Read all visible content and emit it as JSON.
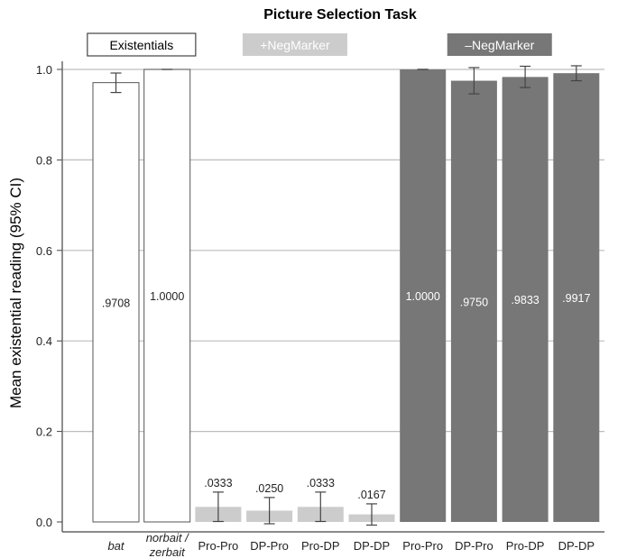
{
  "chart_data": {
    "type": "bar",
    "title": "Picture Selection Task",
    "ylabel": "Mean existential reading (95% CI)",
    "xlabel": "",
    "ylim": [
      0,
      1.0
    ],
    "yticks": [
      "0.0",
      "0.2",
      "0.4",
      "0.6",
      "0.8",
      "1.0"
    ],
    "grid": true,
    "groups": [
      {
        "name": "Existentials",
        "style": "outline",
        "fill": "#ffffff",
        "stroke": "#555555"
      },
      {
        "name": "+NegMarker",
        "style": "light",
        "fill": "#cccccc"
      },
      {
        "name": "–NegMarker",
        "style": "dark",
        "fill": "#777777"
      }
    ],
    "bars": [
      {
        "label": "bat",
        "label_lines": [
          "bat"
        ],
        "italic": true,
        "group": 0,
        "value": 0.9708,
        "data_label": ".9708",
        "ci": [
          0.949,
          0.992
        ]
      },
      {
        "label": "norbait / zerbait",
        "label_lines": [
          "norbait /",
          "zerbait"
        ],
        "italic": true,
        "group": 0,
        "value": 1.0,
        "data_label": "1.0000",
        "ci": [
          1.0,
          1.0
        ]
      },
      {
        "label": "Pro-Pro",
        "label_lines": [
          "Pro-Pro"
        ],
        "italic": false,
        "group": 1,
        "value": 0.0333,
        "data_label": ".0333",
        "ci": [
          0.001,
          0.066
        ]
      },
      {
        "label": "DP-Pro",
        "label_lines": [
          "DP-Pro"
        ],
        "italic": false,
        "group": 1,
        "value": 0.025,
        "data_label": ".0250",
        "ci": [
          -0.004,
          0.054
        ]
      },
      {
        "label": "Pro-DP",
        "label_lines": [
          "Pro-DP"
        ],
        "italic": false,
        "group": 1,
        "value": 0.0333,
        "data_label": ".0333",
        "ci": [
          0.001,
          0.066
        ]
      },
      {
        "label": "DP-DP",
        "label_lines": [
          "DP-DP"
        ],
        "italic": false,
        "group": 1,
        "value": 0.0167,
        "data_label": ".0167",
        "ci": [
          -0.007,
          0.04
        ]
      },
      {
        "label": "Pro-Pro",
        "label_lines": [
          "Pro-Pro"
        ],
        "italic": false,
        "group": 2,
        "value": 1.0,
        "data_label": "1.0000",
        "ci": [
          1.0,
          1.0
        ]
      },
      {
        "label": "DP-Pro",
        "label_lines": [
          "DP-Pro"
        ],
        "italic": false,
        "group": 2,
        "value": 0.975,
        "data_label": ".9750",
        "ci": [
          0.946,
          1.004
        ]
      },
      {
        "label": "Pro-DP",
        "label_lines": [
          "Pro-DP"
        ],
        "italic": false,
        "group": 2,
        "value": 0.9833,
        "data_label": ".9833",
        "ci": [
          0.96,
          1.007
        ]
      },
      {
        "label": "DP-DP",
        "label_lines": [
          "DP-DP"
        ],
        "italic": false,
        "group": 2,
        "value": 0.9917,
        "data_label": ".9917",
        "ci": [
          0.975,
          1.008
        ]
      }
    ]
  }
}
